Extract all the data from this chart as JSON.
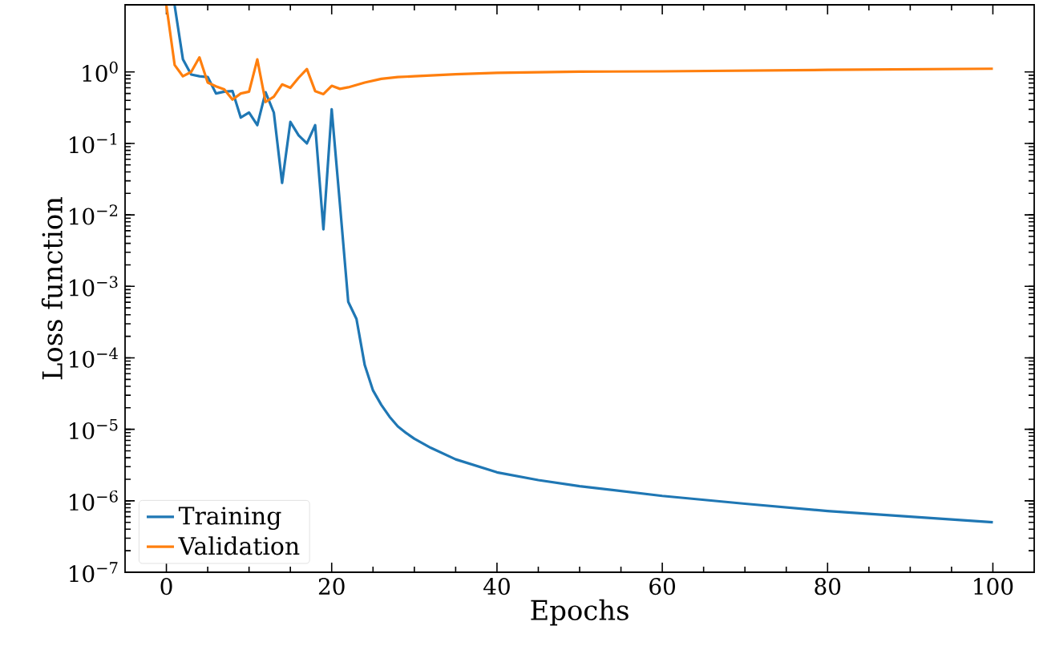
{
  "chart_data": {
    "type": "line",
    "xlabel": "Epochs",
    "ylabel": "Loss function",
    "log": "y",
    "xlim": [
      -5,
      105
    ],
    "xticks": [
      0,
      20,
      40,
      60,
      80,
      100
    ],
    "ylim": [
      1e-07,
      8.7
    ],
    "yticks": [
      {
        "value": 1e-07,
        "label": "10$^{−7}$"
      },
      {
        "value": 1e-06,
        "label": "10$^{−6}$"
      },
      {
        "value": 1e-05,
        "label": "10$^{−5}$"
      },
      {
        "value": 0.0001,
        "label": "10$^{−4}$"
      },
      {
        "value": 0.001,
        "label": "10$^{−3}$"
      },
      {
        "value": 0.01,
        "label": "10$^{−2}$"
      },
      {
        "value": 0.1,
        "label": "10$^{−1}$"
      },
      {
        "value": 1,
        "label": "10$^{0}$"
      }
    ],
    "grid": false,
    "legend": "bottom left",
    "series": [
      {
        "name": "Training",
        "color": "#1f77b4",
        "x": [
          1,
          2,
          3,
          4,
          5,
          6,
          7,
          8,
          9,
          10,
          11,
          12,
          13,
          14,
          15,
          16,
          17,
          18,
          19,
          20,
          21,
          22,
          23,
          24,
          25,
          26,
          27,
          28,
          29,
          30,
          32,
          35,
          40,
          45,
          50,
          60,
          70,
          80,
          90,
          100
        ],
        "values": [
          8.5,
          1.5,
          0.92,
          0.87,
          0.85,
          0.5,
          0.53,
          0.54,
          0.23,
          0.27,
          0.18,
          0.52,
          0.27,
          0.028,
          0.2,
          0.13,
          0.1,
          0.18,
          0.0063,
          0.3,
          0.014,
          0.00061,
          0.00035,
          7.9e-05,
          3.5e-05,
          2.2e-05,
          1.5e-05,
          1.1e-05,
          8.9e-06,
          7.4e-06,
          5.5e-06,
          3.8e-06,
          2.5e-06,
          1.95e-06,
          1.6e-06,
          1.17e-06,
          9.1e-07,
          7.2e-07,
          6e-07,
          5e-07
        ]
      },
      {
        "name": "Validation",
        "color": "#ff7f0e",
        "x": [
          0,
          1,
          2,
          3,
          4,
          5,
          6,
          7,
          8,
          9,
          10,
          11,
          12,
          13,
          14,
          15,
          16,
          17,
          18,
          19,
          20,
          21,
          22,
          24,
          26,
          28,
          30,
          35,
          40,
          50,
          60,
          80,
          100
        ],
        "values": [
          8.5,
          1.25,
          0.87,
          1.0,
          1.6,
          0.71,
          0.63,
          0.57,
          0.41,
          0.5,
          0.53,
          1.5,
          0.38,
          0.45,
          0.67,
          0.6,
          0.83,
          1.1,
          0.54,
          0.49,
          0.64,
          0.58,
          0.61,
          0.71,
          0.8,
          0.85,
          0.87,
          0.93,
          0.97,
          1.01,
          1.02,
          1.07,
          1.11
        ]
      }
    ]
  }
}
